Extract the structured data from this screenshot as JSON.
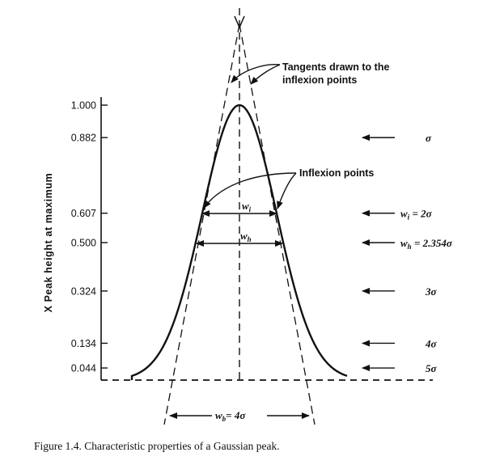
{
  "y_axis": {
    "label": "X Peak height at maximum",
    "ticks": [
      "1.000",
      "0.882",
      "0.607",
      "0.500",
      "0.324",
      "0.134",
      "0.044"
    ]
  },
  "annotations": {
    "tangents": [
      "Tangents drawn to the",
      "inflexion points"
    ],
    "inflexion": "Inflexion points"
  },
  "width_labels": {
    "wi": "w",
    "wi_sub": "i",
    "wh": "w",
    "wh_sub": "h",
    "wb": "w",
    "wb_sub": "b",
    "wb_value": "= 4σ"
  },
  "right_labels": [
    {
      "main": "σ",
      "sub": "",
      "value": ""
    },
    {
      "main": "w",
      "sub": "i",
      "value": "= 2σ"
    },
    {
      "main": "w",
      "sub": "h",
      "value": "= 2.354σ"
    },
    {
      "main": "3σ",
      "sub": "",
      "value": ""
    },
    {
      "main": "4σ",
      "sub": "",
      "value": ""
    },
    {
      "main": "5σ",
      "sub": "",
      "value": ""
    }
  ],
  "caption": "Figure 1.4.  Characteristic properties of a Gaussian peak."
}
